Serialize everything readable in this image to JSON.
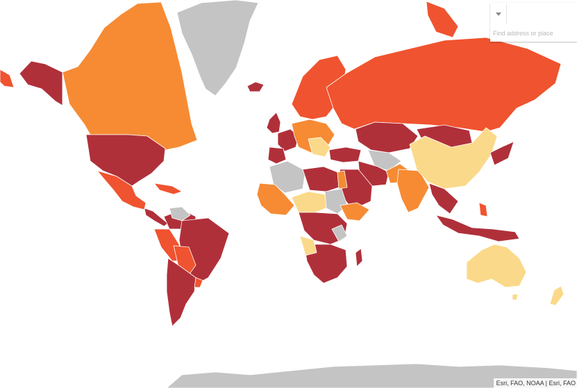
{
  "map": {
    "palette": {
      "very_high": "#b0303a",
      "high": "#f0532f",
      "medium": "#f68b34",
      "low": "#fbd98a",
      "no_data": "#c4c4c4"
    },
    "background": "#ffffff"
  },
  "search": {
    "placeholder": "Find address or place",
    "dropdown_icon": "chevron-down-icon"
  },
  "attribution": {
    "text": "Esri, FAO, NOAA | Esri, FAO"
  }
}
